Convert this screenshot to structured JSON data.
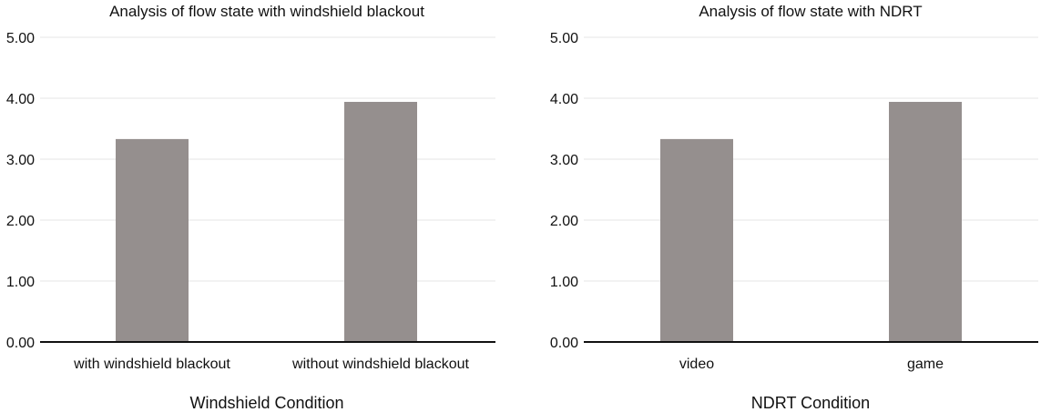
{
  "chart_data": [
    {
      "type": "bar",
      "title": "Analysis of flow state with windshield blackout",
      "xlabel": "Windshield Condition",
      "ylabel": "",
      "categories": [
        "with windshield blackout",
        "without windshield blackout"
      ],
      "values": [
        3.33,
        3.94
      ],
      "ylim": [
        0,
        5
      ],
      "yticks": [
        "0.00",
        "1.00",
        "2.00",
        "3.00",
        "4.00",
        "5.00"
      ],
      "grid": true,
      "bar_color": "#958f8e"
    },
    {
      "type": "bar",
      "title": "Analysis of flow state with NDRT",
      "xlabel": "NDRT Condition",
      "ylabel": "",
      "categories": [
        "video",
        "game"
      ],
      "values": [
        3.33,
        3.94
      ],
      "ylim": [
        0,
        5
      ],
      "yticks": [
        "0.00",
        "1.00",
        "2.00",
        "3.00",
        "4.00",
        "5.00"
      ],
      "grid": true,
      "bar_color": "#958f8e"
    }
  ]
}
